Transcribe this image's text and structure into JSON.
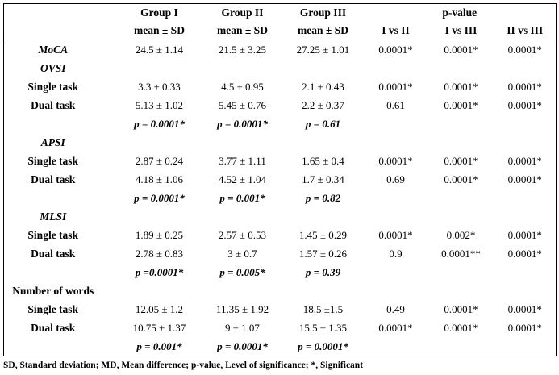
{
  "table": {
    "columns": {
      "group1": "Group I",
      "group2": "Group II",
      "group3": "Group III",
      "mean_sd": "mean ± SD",
      "p_value": "p-value",
      "i_vs_ii": "I vs II",
      "i_vs_iii": "I vs III",
      "ii_vs_iii": "II vs III"
    },
    "rows": [
      {
        "label": "MoCA",
        "italic": true,
        "p": false,
        "cells": [
          "24.5 ± 1.14",
          "21.5 ± 3.25",
          "27.25 ± 1.01",
          "0.0001*",
          "0.0001*",
          "0.0001*"
        ]
      },
      {
        "label": "OVSI",
        "italic": true,
        "p": false,
        "cells": [
          "",
          "",
          "",
          "",
          "",
          ""
        ]
      },
      {
        "label": "Single task",
        "italic": false,
        "p": false,
        "cells": [
          "3.3 ± 0.33",
          "4.5 ± 0.95",
          "2.1 ± 0.43",
          "0.0001*",
          "0.0001*",
          "0.0001*"
        ]
      },
      {
        "label": "Dual task",
        "italic": false,
        "p": false,
        "cells": [
          "5.13 ± 1.02",
          "5.45 ± 0.76",
          "2.2 ± 0.37",
          "0.61",
          "0.0001*",
          "0.0001*"
        ]
      },
      {
        "label": "",
        "italic": false,
        "p": true,
        "cells": [
          "p = 0.0001*",
          "p = 0.0001*",
          "p = 0.61",
          "",
          "",
          ""
        ]
      },
      {
        "label": "APSI",
        "italic": true,
        "p": false,
        "cells": [
          "",
          "",
          "",
          "",
          "",
          ""
        ]
      },
      {
        "label": "Single task",
        "italic": false,
        "p": false,
        "cells": [
          "2.87 ± 0.24",
          "3.77 ± 1.11",
          "1.65 ± 0.4",
          "0.0001*",
          "0.0001*",
          "0.0001*"
        ]
      },
      {
        "label": "Dual task",
        "italic": false,
        "p": false,
        "cells": [
          "4.18 ± 1.06",
          "4.52 ± 1.04",
          "1.7 ± 0.34",
          "0.69",
          "0.0001*",
          "0.0001*"
        ]
      },
      {
        "label": "",
        "italic": false,
        "p": true,
        "cells": [
          "p = 0.0001*",
          "p = 0.001*",
          "p = 0.82",
          "",
          "",
          ""
        ]
      },
      {
        "label": "MLSI",
        "italic": true,
        "p": false,
        "cells": [
          "",
          "",
          "",
          "",
          "",
          ""
        ]
      },
      {
        "label": "Single task",
        "italic": false,
        "p": false,
        "cells": [
          "1.89 ± 0.25",
          "2.57 ± 0.53",
          "1.45 ± 0.29",
          "0.0001*",
          "0.002*",
          "0.0001*"
        ]
      },
      {
        "label": "Dual task",
        "italic": false,
        "p": false,
        "cells": [
          "2.78 ± 0.83",
          "3 ± 0.7",
          "1.57 ± 0.26",
          "0.9",
          "0.0001**",
          "0.0001*"
        ]
      },
      {
        "label": "",
        "italic": false,
        "p": true,
        "cells": [
          "p =0.0001*",
          "p = 0.005*",
          "p = 0.39",
          "",
          "",
          ""
        ]
      },
      {
        "label": "Number of words",
        "italic": false,
        "p": false,
        "cells": [
          "",
          "",
          "",
          "",
          "",
          ""
        ]
      },
      {
        "label": "Single task",
        "italic": false,
        "p": false,
        "cells": [
          "12.05 ± 1.2",
          "11.35 ± 1.92",
          "18.5 ±1.5",
          "0.49",
          "0.0001*",
          "0.0001*"
        ]
      },
      {
        "label": "Dual task",
        "italic": false,
        "p": false,
        "cells": [
          "10.75 ± 1.37",
          "9 ± 1.07",
          "15.5 ± 1.35",
          "0.0001*",
          "0.0001*",
          "0.0001*"
        ]
      },
      {
        "label": "",
        "italic": false,
        "p": true,
        "cells": [
          "p = 0.001*",
          "p = 0.0001*",
          "p = 0.0001*",
          "",
          "",
          ""
        ]
      }
    ]
  },
  "footnote": "SD, Standard deviation; MD, Mean difference; p-value, Level of significance; *, Significant"
}
